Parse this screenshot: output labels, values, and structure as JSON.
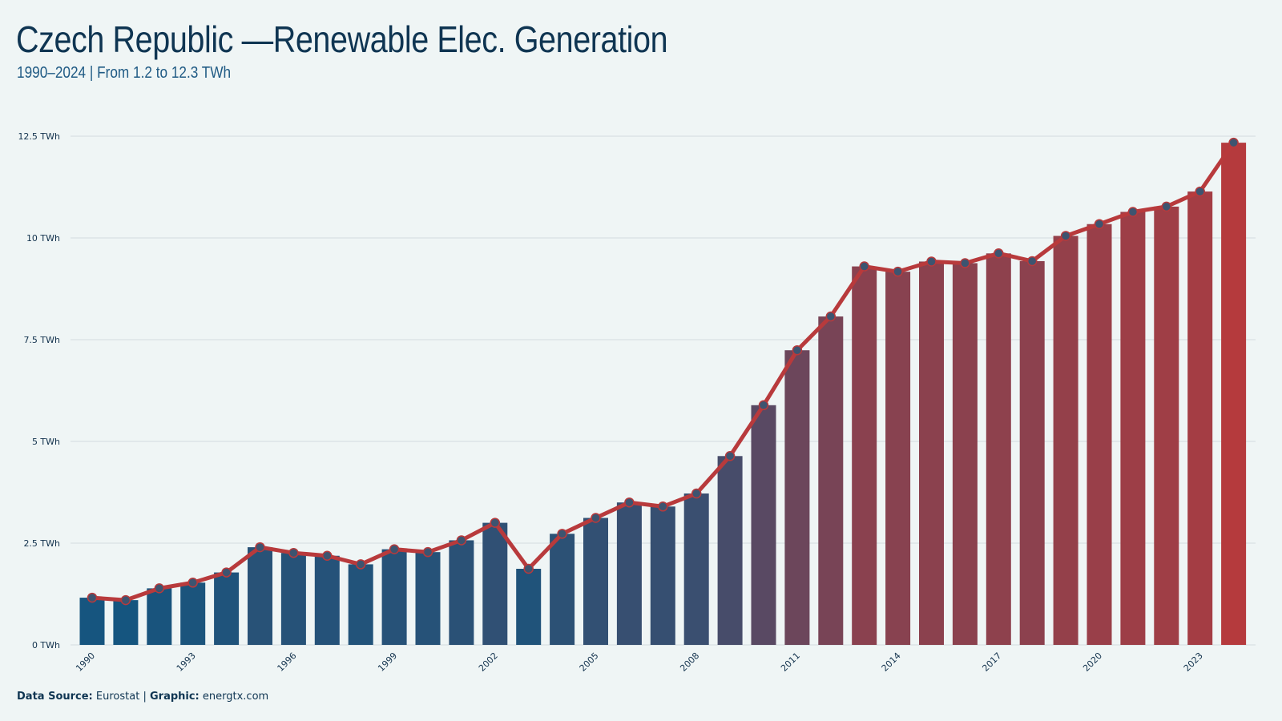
{
  "title": "Czech Republic —Renewable Elec. Generation",
  "subtitle": "1990–2024 | From 1.2 to 12.3 TWh",
  "caption": {
    "source_label": "Data Source:",
    "source_value": "Eurostat",
    "separator": "|",
    "graphic_label": "Graphic:",
    "graphic_value": "energtx.com"
  },
  "colors": {
    "bar_start": "#15557f",
    "bar_end": "#b53a3d",
    "line": "#b83a3c",
    "point_fill": "#3d5470",
    "grid": "#d3dbde",
    "axis_text": "#12324d"
  },
  "chart_data": {
    "type": "bar",
    "categories": [
      "1990",
      "1991",
      "1992",
      "1993",
      "1994",
      "1995",
      "1996",
      "1997",
      "1998",
      "1999",
      "2000",
      "2001",
      "2002",
      "2003",
      "2004",
      "2005",
      "2006",
      "2007",
      "2008",
      "2009",
      "2010",
      "2011",
      "2012",
      "2013",
      "2014",
      "2015",
      "2016",
      "2017",
      "2018",
      "2019",
      "2020",
      "2021",
      "2022",
      "2023",
      "2024"
    ],
    "x_tick_labels": [
      "1990",
      "1993",
      "1996",
      "1999",
      "2002",
      "2005",
      "2008",
      "2011",
      "2014",
      "2017",
      "2020",
      "2023"
    ],
    "values": [
      1.16,
      1.1,
      1.39,
      1.53,
      1.78,
      2.4,
      2.26,
      2.19,
      1.98,
      2.35,
      2.28,
      2.57,
      3.0,
      1.87,
      2.73,
      3.12,
      3.5,
      3.4,
      3.72,
      4.64,
      5.89,
      7.24,
      8.07,
      9.3,
      9.17,
      9.42,
      9.38,
      9.62,
      9.43,
      10.05,
      10.34,
      10.64,
      10.77,
      11.14,
      12.34
    ],
    "ylim": [
      0,
      12.5
    ],
    "y_ticks": [
      0,
      2.5,
      5,
      7.5,
      10,
      12.5
    ],
    "y_tick_labels": [
      "0 TWh",
      "2.5 TWh",
      "5 TWh",
      "7.5 TWh",
      "10 TWh",
      "12.5 TWh"
    ],
    "grid": true,
    "overlay": "line-with-points",
    "xlabel": "",
    "ylabel": ""
  }
}
